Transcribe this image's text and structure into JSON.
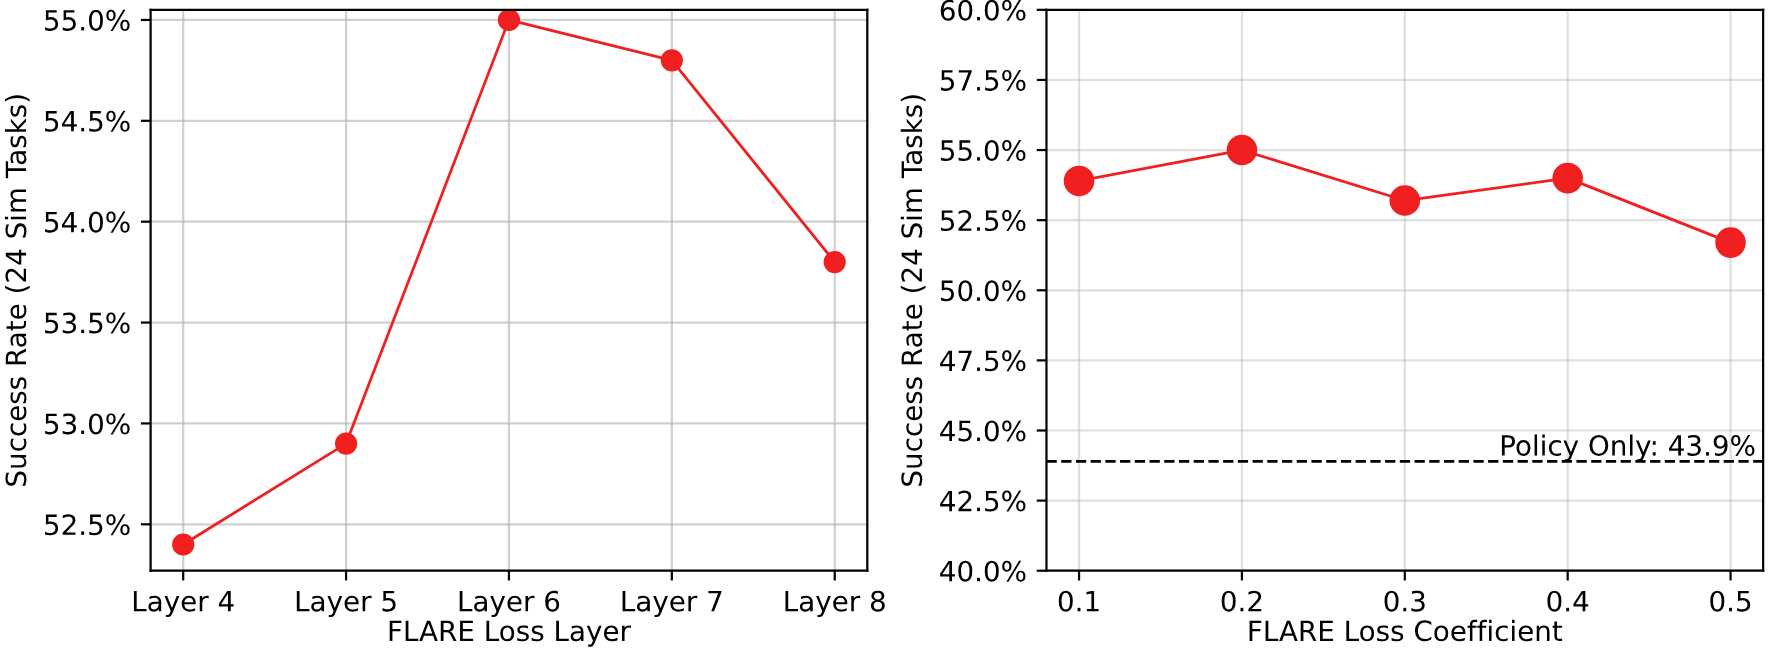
{
  "chart_data": [
    {
      "type": "line",
      "xlabel": "FLARE Loss Layer",
      "ylabel": "Success Rate (24 Sim Tasks)",
      "categories": [
        "Layer 4",
        "Layer 5",
        "Layer 6",
        "Layer 7",
        "Layer 8"
      ],
      "series": [
        {
          "color": "#f02020",
          "values": [
            52.4,
            52.9,
            55.0,
            54.8,
            53.8
          ]
        }
      ],
      "ylim": [
        52.27,
        55.05
      ],
      "yticks": [
        {
          "value": 52.5,
          "label": "52.5%"
        },
        {
          "value": 53.0,
          "label": "53.0%"
        },
        {
          "value": 53.5,
          "label": "53.5%"
        },
        {
          "value": 54.0,
          "label": "54.0%"
        },
        {
          "value": 54.5,
          "label": "54.5%"
        },
        {
          "value": 55.0,
          "label": "55.0%"
        }
      ],
      "grid": true,
      "marker": "circle",
      "line_style": "solid"
    },
    {
      "type": "line",
      "xlabel": "FLARE Loss Coefficient",
      "ylabel": "Success Rate (24 Sim Tasks)",
      "x": [
        0.1,
        0.2,
        0.3,
        0.4,
        0.5
      ],
      "series": [
        {
          "color": "#f02020",
          "values": [
            53.9,
            55.0,
            53.2,
            54.0,
            51.7
          ]
        }
      ],
      "xlim": [
        0.08,
        0.52
      ],
      "xticks": [
        0.1,
        0.2,
        0.3,
        0.4,
        0.5
      ],
      "ylim": [
        40,
        60
      ],
      "yticks": [
        {
          "value": 40,
          "label": "40.0%"
        },
        {
          "value": 42.5,
          "label": "42.5%"
        },
        {
          "value": 45,
          "label": "45.0%"
        },
        {
          "value": 47.5,
          "label": "47.5%"
        },
        {
          "value": 50,
          "label": "50.0%"
        },
        {
          "value": 52.5,
          "label": "52.5%"
        },
        {
          "value": 55,
          "label": "55.0%"
        },
        {
          "value": 57.5,
          "label": "57.5%"
        },
        {
          "value": 60,
          "label": "60.0%"
        }
      ],
      "ref_lines": [
        {
          "axis": "y",
          "value": 43.9,
          "label": "Policy Only: 43.9%",
          "color": "#000000",
          "line_style": "dashed"
        }
      ],
      "grid": true,
      "marker": "circle",
      "line_style": "solid"
    }
  ]
}
